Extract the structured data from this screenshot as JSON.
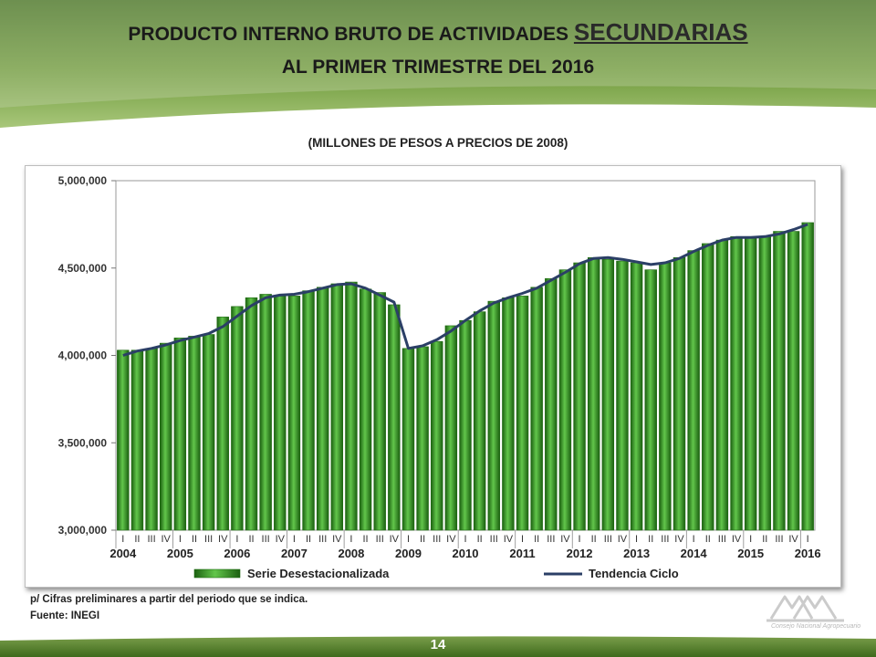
{
  "header": {
    "title_part1": "PRODUCTO INTERNO BRUTO DE  ACTIVIDADES ",
    "title_highlight": "SECUNDARIAS",
    "title_line2": "AL PRIMER TRIMESTRE DEL 2016",
    "subtitle": "(MILLONES DE PESOS A PRECIOS DE 2008)"
  },
  "footer": {
    "footnote": "p/ Cifras preliminares a partir del periodo que se indica.",
    "source": "Fuente: INEGI",
    "page_number": "14",
    "logo_caption": "Consejo Nacional Agropecuario"
  },
  "colors": {
    "banner": "#4a7a24",
    "bar_fill": "#3fa62e",
    "bar_dark": "#1f6b12",
    "trend_line": "#2b3f66"
  },
  "chart_data": {
    "type": "bar",
    "ylim": [
      3000000,
      5000000
    ],
    "y_ticks": [
      3000000,
      3500000,
      4000000,
      4500000,
      5000000
    ],
    "y_tick_labels": [
      "3,000,000",
      "3,500,000",
      "4,000,000",
      "4,500,000",
      "5,000,000"
    ],
    "grid": false,
    "legend_position": "bottom",
    "quarter_labels": [
      "I",
      "II",
      "III",
      "IV",
      "I",
      "II",
      "III",
      "IV",
      "I",
      "II",
      "III",
      "IV",
      "I",
      "II",
      "III",
      "IV",
      "I",
      "II",
      "III",
      "IV",
      "I",
      "II",
      "III",
      "IV",
      "I",
      "II",
      "III",
      "IV",
      "I",
      "II",
      "III",
      "IV",
      "I",
      "II",
      "III",
      "IV",
      "I",
      "II",
      "III",
      "IV",
      "I",
      "II",
      "III",
      "IV",
      "I",
      "II",
      "III",
      "IV",
      "I"
    ],
    "years": [
      "2004",
      "2005",
      "2006",
      "2007",
      "2008",
      "2009",
      "2010",
      "2011",
      "2012",
      "2013",
      "2014",
      "2015",
      "2016"
    ],
    "series": [
      {
        "name": "Serie Desestacionalizada",
        "type": "bar",
        "values": [
          4030000,
          4030000,
          4040000,
          4070000,
          4100000,
          4110000,
          4120000,
          4220000,
          4280000,
          4330000,
          4350000,
          4340000,
          4340000,
          4370000,
          4390000,
          4410000,
          4420000,
          4380000,
          4360000,
          4290000,
          4040000,
          4050000,
          4080000,
          4170000,
          4200000,
          4250000,
          4310000,
          4330000,
          4340000,
          4390000,
          4440000,
          4490000,
          4530000,
          4560000,
          4550000,
          4540000,
          4530000,
          4490000,
          4530000,
          4560000,
          4600000,
          4640000,
          4660000,
          4680000,
          4680000,
          4680000,
          4710000,
          4710000,
          4760000
        ]
      },
      {
        "name": "Tendencia Ciclo",
        "type": "line",
        "values": [
          4000000,
          4025000,
          4040000,
          4060000,
          4085000,
          4105000,
          4125000,
          4165000,
          4225000,
          4285000,
          4330000,
          4345000,
          4350000,
          4365000,
          4385000,
          4405000,
          4410000,
          4385000,
          4345000,
          4305000,
          4040000,
          4055000,
          4090000,
          4140000,
          4200000,
          4255000,
          4300000,
          4330000,
          4355000,
          4385000,
          4430000,
          4475000,
          4525000,
          4555000,
          4560000,
          4550000,
          4535000,
          4520000,
          4530000,
          4555000,
          4595000,
          4630000,
          4660000,
          4675000,
          4675000,
          4680000,
          4695000,
          4720000,
          4750000
        ]
      }
    ]
  }
}
